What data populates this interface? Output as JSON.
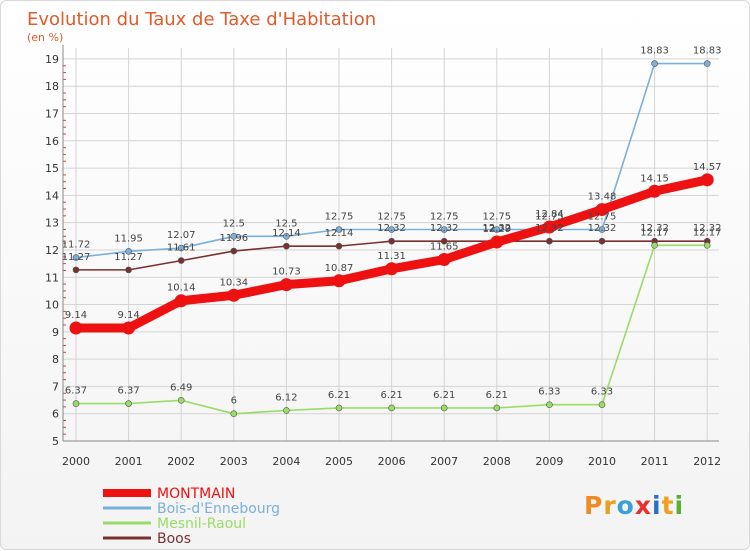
{
  "chart_data": {
    "type": "line",
    "title": "Evolution du Taux de Taxe d'Habitation",
    "subtitle": "(en %)",
    "categories": [
      "2000",
      "2001",
      "2002",
      "2003",
      "2004",
      "2005",
      "2006",
      "2007",
      "2008",
      "2009",
      "2010",
      "2011",
      "2012"
    ],
    "yticks": [
      "5",
      "6",
      "7",
      "8",
      "9",
      "10",
      "11",
      "12",
      "13",
      "14",
      "15",
      "16",
      "17",
      "18",
      "19"
    ],
    "ylim": [
      5,
      19.4
    ],
    "grid": true,
    "legend_position": "bottom-left",
    "series": [
      {
        "name": "MONTMAIN",
        "color": "#ee1111",
        "values": [
          9.14,
          9.14,
          10.14,
          10.34,
          10.73,
          10.87,
          11.31,
          11.65,
          12.29,
          12.84,
          13.48,
          14.15,
          14.57
        ],
        "labels": [
          "9.14",
          "9.14",
          "10.14",
          "10.34",
          "10.73",
          "10.87",
          "11.31",
          "11.65",
          "12.29",
          "12.84",
          "13.48",
          "14.15",
          "14.57"
        ]
      },
      {
        "name": "Bois-d'Ennebourg",
        "color": "#7ab0dc",
        "values": [
          11.72,
          11.95,
          12.07,
          12.5,
          12.5,
          12.75,
          12.75,
          12.75,
          12.75,
          12.75,
          12.75,
          18.83,
          18.83
        ],
        "labels": [
          "11.72",
          "11.95",
          "12.07",
          "12.5",
          "12.5",
          "12.75",
          "12.75",
          "12.75",
          "12.75",
          "12.75",
          "12.75",
          "18.83",
          "18.83"
        ]
      },
      {
        "name": "Mesnil-Raoul",
        "color": "#99dd66",
        "values": [
          6.37,
          6.37,
          6.49,
          6,
          6.12,
          6.21,
          6.21,
          6.21,
          6.21,
          6.33,
          6.33,
          12.17,
          12.17
        ],
        "labels": [
          "6.37",
          "6.37",
          "6.49",
          "6",
          "6.12",
          "6.21",
          "6.21",
          "6.21",
          "6.21",
          "6.33",
          "6.33",
          "12.17",
          "12.17"
        ]
      },
      {
        "name": "Boos",
        "color": "#7a3030",
        "values": [
          11.27,
          11.27,
          11.61,
          11.96,
          12.14,
          12.14,
          12.32,
          12.32,
          12.32,
          12.32,
          12.32,
          12.32,
          12.32
        ],
        "labels": [
          "11.27",
          "11.27",
          "11.61",
          "11.96",
          "12.14",
          "12.14",
          "12.32",
          "12.32",
          "12.32",
          "12.32",
          "12.32",
          "12.32",
          "12.32"
        ]
      }
    ]
  },
  "logo": {
    "text": "Proxiti",
    "colors": [
      "#f08a24",
      "#e8a020",
      "#3aa0d8",
      "#e83030",
      "#2a70c8",
      "#f0a020",
      "#5ab030"
    ]
  }
}
